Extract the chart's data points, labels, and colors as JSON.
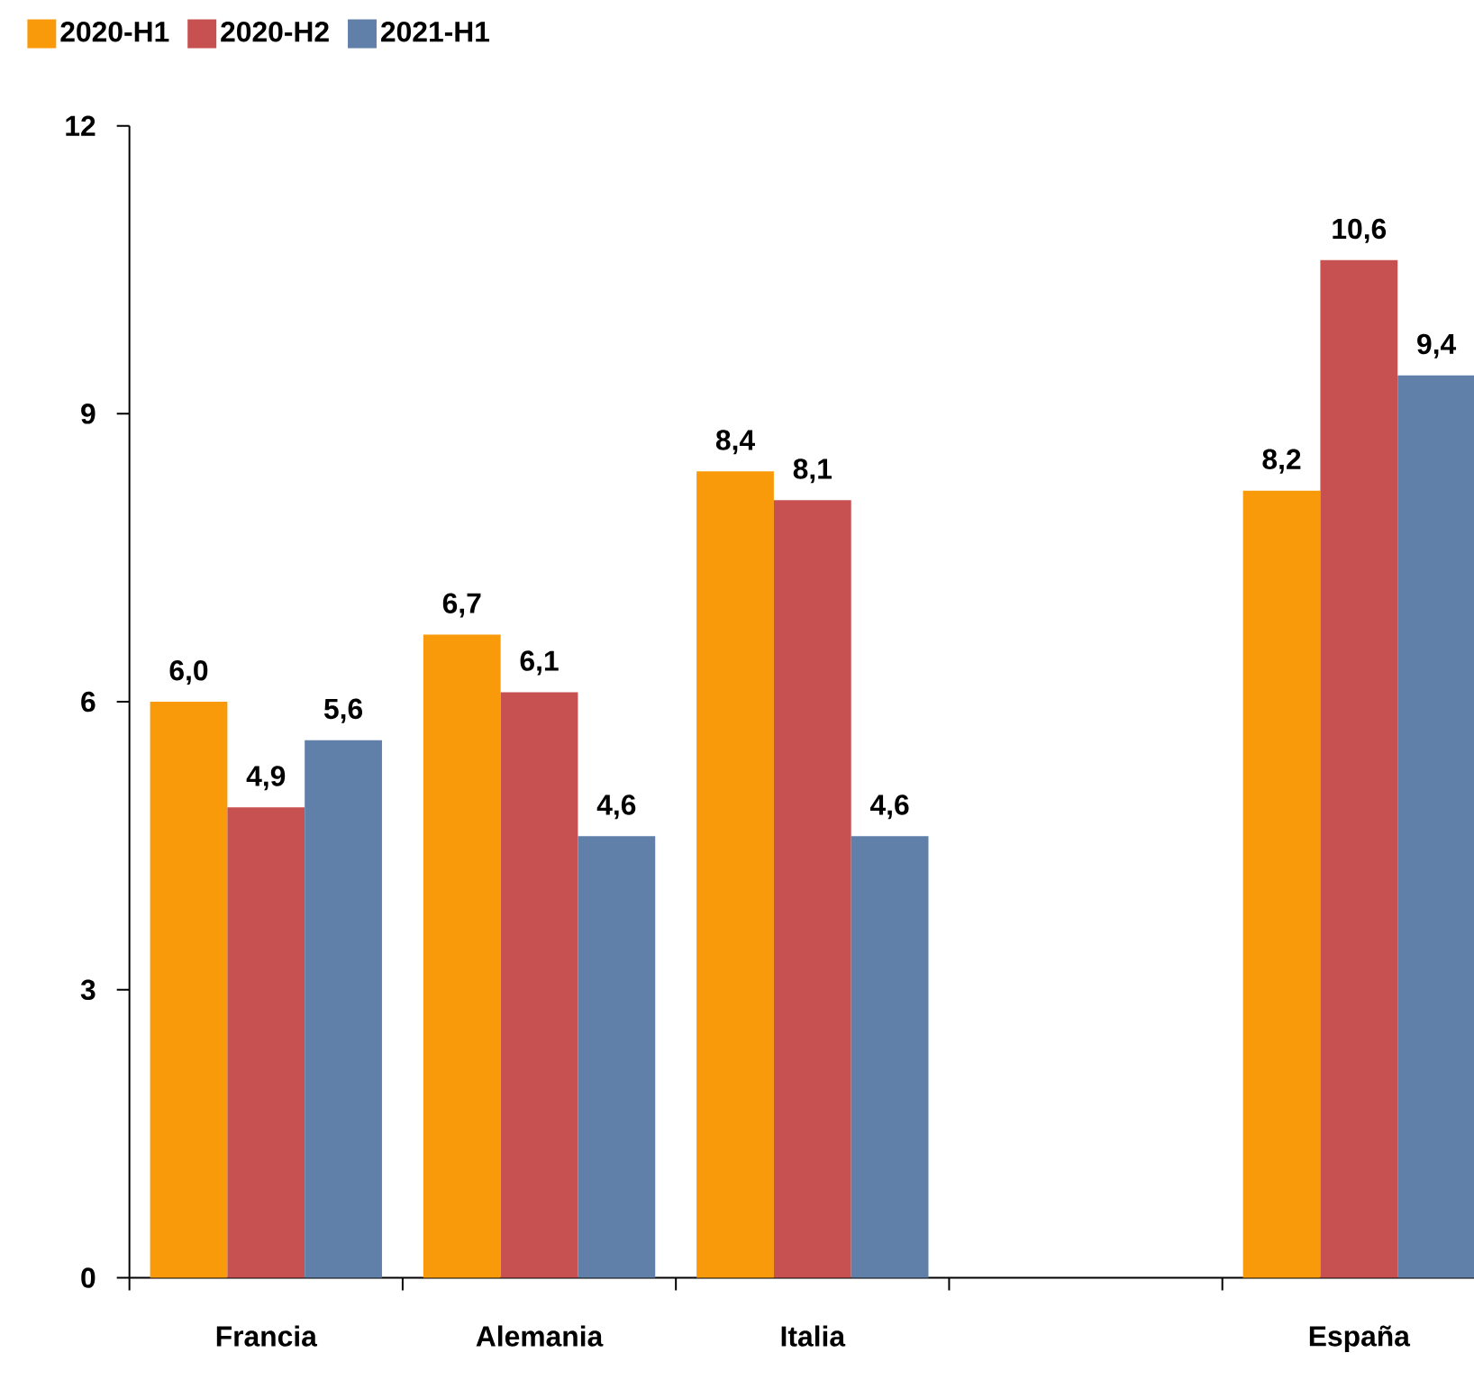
{
  "chart_data": {
    "type": "bar",
    "categories": [
      "Francia",
      "Alemania",
      "Italia",
      null,
      "España"
    ],
    "series": [
      {
        "name": "2020-H1",
        "color": "#f99a0a",
        "values": [
          6.0,
          6.7,
          8.4,
          null,
          8.2
        ],
        "value_labels": [
          "6,0",
          "6,7",
          "8,4",
          null,
          "8,2"
        ]
      },
      {
        "name": "2020-H2",
        "color": "#c75150",
        "values": [
          4.9,
          6.1,
          8.1,
          null,
          10.6
        ],
        "value_labels": [
          "4,9",
          "6,1",
          "8,1",
          null,
          "10,6"
        ]
      },
      {
        "name": "2021-H1",
        "color": "#6080aa",
        "values": [
          5.6,
          4.6,
          4.6,
          null,
          9.4
        ],
        "value_labels": [
          "5,6",
          "4,6",
          "4,6",
          null,
          "9,4"
        ]
      }
    ],
    "ylim": [
      0,
      12
    ],
    "yticks": [
      0,
      3,
      6,
      9,
      12
    ],
    "grid": false,
    "legend": "top left"
  }
}
